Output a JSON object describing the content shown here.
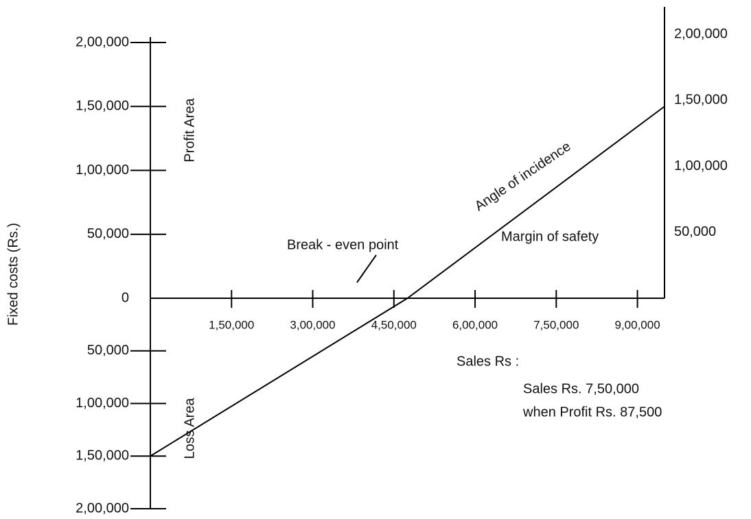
{
  "chart_data": {
    "type": "line",
    "y_label": "Fixed costs (Rs.)",
    "x_label": "Sales Rs :",
    "annotations": [
      "Profit  Area",
      "Loss Area",
      "Angle of incidence",
      "Margin of safety",
      "Break - even point",
      "Sales Rs. 7,50,000",
      "when Profit Rs. 87,500"
    ],
    "x": [
      0,
      475000,
      950000
    ],
    "series": [
      {
        "color": "#000000",
        "values": [
          -150000,
          0,
          150000
        ]
      }
    ],
    "xlim": [
      0,
      950000
    ],
    "xticks": [
      {
        "value": 150000,
        "label": "1,50,000"
      },
      {
        "value": 300000,
        "label": "3,00,000"
      },
      {
        "value": 450000,
        "label": "4,50,000"
      },
      {
        "value": 600000,
        "label": "6,00,000"
      },
      {
        "value": 750000,
        "label": "7,50,000"
      },
      {
        "value": 900000,
        "label": "9,00,000"
      }
    ],
    "ylim": [
      -200000,
      200000
    ],
    "yticks": [
      {
        "value": 200000,
        "label": "2,00,000"
      },
      {
        "value": 150000,
        "label": "1,50,000"
      },
      {
        "value": 100000,
        "label": "1,00,000"
      },
      {
        "value": 50000,
        "label": "50,000"
      },
      0,
      {
        "value": -50000,
        "label": "50,000"
      },
      {
        "value": -100000,
        "label": "1,00,000"
      },
      {
        "value": -150000,
        "label": "1,50,000"
      },
      {
        "value": -200000,
        "label": "2,00,000"
      }
    ],
    "y2lim": [
      0,
      200000
    ],
    "y2ticks": [
      {
        "value": 200000,
        "label": "2,00,000"
      },
      {
        "value": 150000,
        "label": "1,50,000"
      },
      {
        "value": 100000,
        "label": "1,00,000"
      },
      {
        "value": 50000,
        "label": "50,000"
      }
    ]
  }
}
